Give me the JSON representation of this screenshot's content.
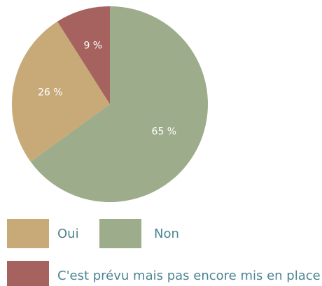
{
  "chart_data": {
    "type": "pie",
    "categories": [
      "Oui",
      "Non",
      "C'est prévu mais pas encore mis en place"
    ],
    "values": [
      26,
      65,
      9
    ],
    "value_labels": [
      "26 %",
      "65 %",
      "9 %"
    ],
    "colors": [
      "#c8aa79",
      "#9dac8a",
      "#a5625e"
    ]
  }
}
